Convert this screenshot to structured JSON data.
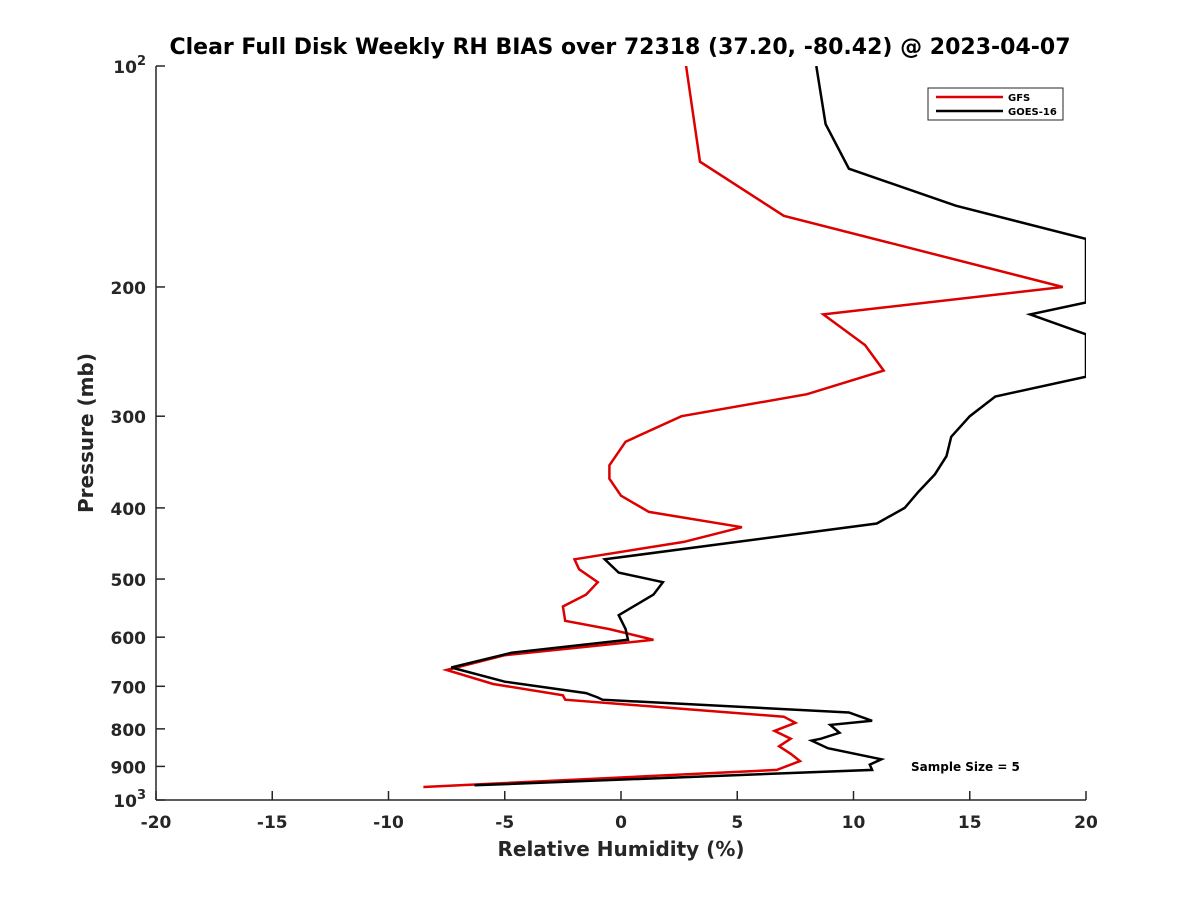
{
  "chart_data": {
    "type": "line",
    "title": "Clear Full Disk Weekly RH BIAS over 72318 (37.20, -80.42) @ 2023-04-07",
    "xlabel": "Relative Humidity (%)",
    "ylabel": "Pressure (mb)",
    "xlim": [
      -20,
      20
    ],
    "ylim": [
      100,
      1000
    ],
    "y_scale": "log",
    "y_reversed": true,
    "grid": false,
    "legend_position": "top-right",
    "x_ticks": [
      "-20",
      "-15",
      "-10",
      "-5",
      "0",
      "5",
      "10",
      "15",
      "20"
    ],
    "y_ticks": [
      {
        "value": 100,
        "base": "10",
        "exp": "2"
      },
      {
        "value": 200,
        "base": "200",
        "exp": ""
      },
      {
        "value": 300,
        "base": "300",
        "exp": ""
      },
      {
        "value": 400,
        "base": "400",
        "exp": ""
      },
      {
        "value": 500,
        "base": "500",
        "exp": ""
      },
      {
        "value": 600,
        "base": "600",
        "exp": ""
      },
      {
        "value": 700,
        "base": "700",
        "exp": ""
      },
      {
        "value": 800,
        "base": "800",
        "exp": ""
      },
      {
        "value": 900,
        "base": "900",
        "exp": ""
      },
      {
        "value": 1000,
        "base": "10",
        "exp": "3"
      }
    ],
    "annotation": "Sample Size = 5",
    "series": [
      {
        "name": "GFS",
        "color": "#dd0000",
        "points": [
          [
            2.8,
            100
          ],
          [
            3.4,
            135
          ],
          [
            7.0,
            160
          ],
          [
            19.0,
            200
          ],
          [
            8.7,
            218
          ],
          [
            10.5,
            240
          ],
          [
            11.3,
            260
          ],
          [
            8.0,
            280
          ],
          [
            2.6,
            300
          ],
          [
            0.2,
            325
          ],
          [
            -0.5,
            350
          ],
          [
            -0.5,
            365
          ],
          [
            0.0,
            385
          ],
          [
            1.2,
            405
          ],
          [
            5.2,
            425
          ],
          [
            2.7,
            445
          ],
          [
            -2.0,
            470
          ],
          [
            -1.8,
            485
          ],
          [
            -1.0,
            505
          ],
          [
            -1.5,
            525
          ],
          [
            -2.5,
            545
          ],
          [
            -2.4,
            570
          ],
          [
            -0.5,
            585
          ],
          [
            1.4,
            605
          ],
          [
            -5.0,
            635
          ],
          [
            -7.5,
            665
          ],
          [
            -5.5,
            695
          ],
          [
            -2.5,
            720
          ],
          [
            -2.4,
            730
          ],
          [
            7.0,
            770
          ],
          [
            7.5,
            785
          ],
          [
            6.6,
            805
          ],
          [
            7.3,
            825
          ],
          [
            6.8,
            845
          ],
          [
            7.3,
            865
          ],
          [
            7.7,
            885
          ],
          [
            6.7,
            910
          ],
          [
            -8.5,
            960
          ]
        ]
      },
      {
        "name": "GOES-16",
        "color": "#000000",
        "points": [
          [
            8.4,
            100
          ],
          [
            8.8,
            120
          ],
          [
            9.8,
            138
          ],
          [
            14.4,
            155
          ],
          [
            20.0,
            172
          ],
          [
            20.0,
            210
          ],
          [
            17.6,
            218
          ],
          [
            20.0,
            232
          ],
          [
            20.0,
            265
          ],
          [
            16.1,
            282
          ],
          [
            15.0,
            300
          ],
          [
            14.2,
            320
          ],
          [
            14.0,
            340
          ],
          [
            13.5,
            360
          ],
          [
            12.8,
            380
          ],
          [
            12.2,
            400
          ],
          [
            11.0,
            420
          ],
          [
            -0.7,
            470
          ],
          [
            -0.1,
            490
          ],
          [
            1.8,
            505
          ],
          [
            1.4,
            525
          ],
          [
            -0.1,
            560
          ],
          [
            0.2,
            585
          ],
          [
            0.3,
            605
          ],
          [
            -4.7,
            630
          ],
          [
            -7.3,
            660
          ],
          [
            -5.0,
            690
          ],
          [
            -1.5,
            715
          ],
          [
            -1.0,
            725
          ],
          [
            -0.8,
            730
          ],
          [
            9.8,
            760
          ],
          [
            10.8,
            780
          ],
          [
            9.0,
            790
          ],
          [
            9.4,
            810
          ],
          [
            8.6,
            825
          ],
          [
            8.2,
            830
          ],
          [
            8.9,
            850
          ],
          [
            11.2,
            880
          ],
          [
            10.7,
            895
          ],
          [
            10.8,
            910
          ],
          [
            -6.3,
            955
          ]
        ]
      }
    ]
  }
}
